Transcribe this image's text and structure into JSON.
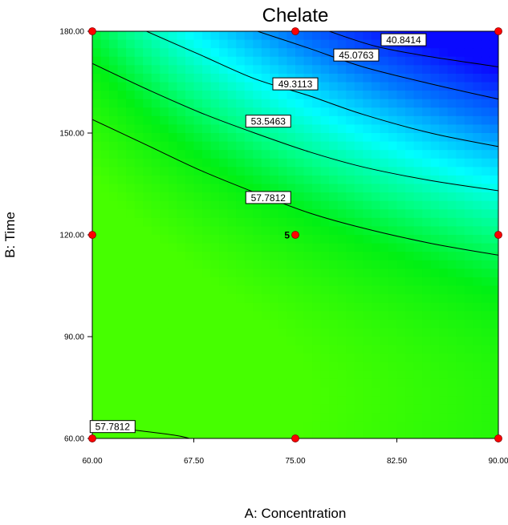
{
  "chart_data": {
    "type": "contour",
    "title": "Chelate",
    "xlabel": "A: Concentration",
    "ylabel": "B: Time",
    "xlim": [
      60,
      90
    ],
    "ylim": [
      60,
      180
    ],
    "x_ticks": [
      "60.00",
      "67.50",
      "75.00",
      "82.50",
      "90.00"
    ],
    "x_tick_values": [
      60,
      67.5,
      75,
      82.5,
      90
    ],
    "y_ticks": [
      "60.00",
      "90.00",
      "120.00",
      "150.00",
      "180.00"
    ],
    "y_tick_values": [
      60,
      90,
      120,
      150,
      180
    ],
    "contour_levels": [
      {
        "label": "40.8414",
        "points": [
          [
            77.5,
            180
          ],
          [
            81,
            175.5
          ],
          [
            85,
            172.5
          ],
          [
            90,
            169.5
          ]
        ],
        "label_at": [
          83,
          177.5
        ]
      },
      {
        "label": "45.0763",
        "points": [
          [
            72.2,
            180
          ],
          [
            76,
            175
          ],
          [
            80,
            169.5
          ],
          [
            85,
            164.5
          ],
          [
            90,
            160
          ]
        ],
        "label_at": [
          79.5,
          173
        ]
      },
      {
        "label": "49.3113",
        "points": [
          [
            64,
            180
          ],
          [
            68,
            173
          ],
          [
            72,
            166
          ],
          [
            76,
            161
          ],
          [
            80,
            155.5
          ],
          [
            85,
            150
          ],
          [
            90,
            146
          ]
        ],
        "label_at": [
          75,
          164.5
        ]
      },
      {
        "label": "53.5463",
        "points": [
          [
            60,
            170.5
          ],
          [
            64,
            163
          ],
          [
            68,
            156
          ],
          [
            72,
            150
          ],
          [
            76,
            144.5
          ],
          [
            80,
            140
          ],
          [
            85,
            136
          ],
          [
            90,
            133
          ]
        ],
        "label_at": [
          73,
          153.5
        ]
      },
      {
        "label": "57.7812",
        "points": [
          [
            60,
            154
          ],
          [
            64,
            146.5
          ],
          [
            68,
            139
          ],
          [
            72,
            132.5
          ],
          [
            76,
            126.5
          ],
          [
            80,
            122
          ],
          [
            85,
            117.5
          ],
          [
            90,
            114
          ]
        ],
        "label_at": [
          73,
          131
        ]
      },
      {
        "label": "57.7812",
        "points": [
          [
            60,
            64
          ],
          [
            63,
            62.5
          ],
          [
            66,
            61
          ],
          [
            67.2,
            60
          ]
        ],
        "label_at": [
          61.5,
          63.5
        ]
      }
    ],
    "design_points": [
      {
        "x": 60,
        "y": 180
      },
      {
        "x": 75,
        "y": 180
      },
      {
        "x": 90,
        "y": 180
      },
      {
        "x": 60,
        "y": 120
      },
      {
        "x": 75,
        "y": 120,
        "label": "5"
      },
      {
        "x": 90,
        "y": 120
      },
      {
        "x": 60,
        "y": 60
      },
      {
        "x": 75,
        "y": 60
      },
      {
        "x": 90,
        "y": 60
      }
    ],
    "center_point_label": "5",
    "colors": {
      "low": "#0a0aff",
      "mid": "#00ffff",
      "high": "#44ff00",
      "point": "#ff0000"
    },
    "grid": false,
    "legend": "none"
  }
}
